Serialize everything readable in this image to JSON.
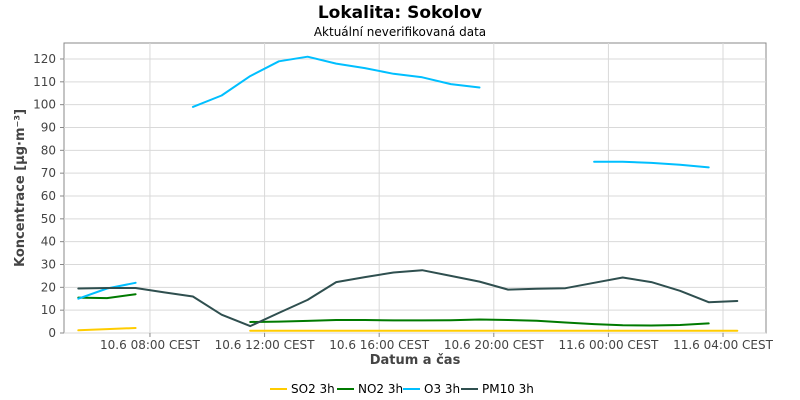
{
  "chart_data": {
    "type": "line",
    "title": "Lokalita: Sokolov",
    "subtitle": "Aktuální neverifikovaná data",
    "xlabel": "Datum a čas",
    "ylabel": "Koncentrace [µg·m⁻³]",
    "ylim": [
      0,
      127
    ],
    "yticks": [
      0,
      10,
      20,
      30,
      40,
      50,
      60,
      70,
      80,
      90,
      100,
      110,
      120
    ],
    "xlim": [
      "10.6 05:00",
      "11.6 05:30"
    ],
    "xticks": [
      {
        "time": "10.6 08:00",
        "label": "10.6 08:00 CEST"
      },
      {
        "time": "10.6 12:00",
        "label": "10.6 12:00 CEST"
      },
      {
        "time": "10.6 16:00",
        "label": "10.6 16:00 CEST"
      },
      {
        "time": "10.6 20:00",
        "label": "10.6 20:00 CEST"
      },
      {
        "time": "11.6 00:00",
        "label": "11.6 00:00 CEST"
      },
      {
        "time": "11.6 04:00",
        "label": "11.6 04:00 CEST"
      }
    ],
    "grid": true,
    "legend_position": "bottom",
    "series": [
      {
        "name": "SO2 3h",
        "color": "#ffcc00",
        "points": [
          [
            "10.6 05:30",
            1.2
          ],
          [
            "10.6 06:30",
            1.7
          ],
          [
            "10.6 07:30",
            2.2
          ],
          null,
          [
            "10.6 11:30",
            1.0
          ],
          [
            "10.6 12:30",
            1.0
          ],
          [
            "10.6 13:30",
            1.0
          ],
          [
            "10.6 14:30",
            1.0
          ],
          [
            "10.6 15:30",
            1.0
          ],
          [
            "10.6 16:30",
            1.0
          ],
          [
            "10.6 17:30",
            1.0
          ],
          [
            "10.6 18:30",
            1.0
          ],
          [
            "10.6 19:30",
            1.0
          ],
          [
            "10.6 20:30",
            1.0
          ],
          [
            "10.6 21:30",
            1.0
          ],
          [
            "10.6 22:30",
            1.0
          ],
          [
            "10.6 23:30",
            1.0
          ],
          [
            "11.6 00:30",
            1.0
          ],
          [
            "11.6 01:30",
            1.0
          ],
          [
            "11.6 02:30",
            1.0
          ],
          [
            "11.6 03:30",
            1.0
          ],
          [
            "11.6 04:30",
            1.0
          ]
        ]
      },
      {
        "name": "NO2 3h",
        "color": "#007a00",
        "points": [
          [
            "10.6 05:30",
            15.5
          ],
          [
            "10.6 06:30",
            15.3
          ],
          [
            "10.6 07:30",
            17.0
          ],
          null,
          [
            "10.6 11:30",
            4.8
          ],
          [
            "10.6 12:30",
            5.0
          ],
          [
            "10.6 13:30",
            5.3
          ],
          [
            "10.6 14:30",
            5.7
          ],
          [
            "10.6 15:30",
            5.7
          ],
          [
            "10.6 16:30",
            5.5
          ],
          [
            "10.6 17:30",
            5.5
          ],
          [
            "10.6 18:30",
            5.6
          ],
          [
            "10.6 19:30",
            5.9
          ],
          [
            "10.6 20:30",
            5.7
          ],
          [
            "10.6 21:30",
            5.4
          ],
          [
            "10.6 22:30",
            4.6
          ],
          [
            "10.6 23:30",
            3.9
          ],
          [
            "11.6 00:30",
            3.4
          ],
          [
            "11.6 01:30",
            3.3
          ],
          [
            "11.6 02:30",
            3.5
          ],
          [
            "11.6 03:30",
            4.2
          ]
        ]
      },
      {
        "name": "O3 3h",
        "color": "#00bfff",
        "points": [
          [
            "10.6 05:30",
            15.0
          ],
          [
            "10.6 06:30",
            19.5
          ],
          [
            "10.6 07:30",
            22.0
          ],
          null,
          [
            "10.6 09:30",
            99.0
          ],
          [
            "10.6 10:30",
            104.0
          ],
          [
            "10.6 11:30",
            112.5
          ],
          [
            "10.6 12:30",
            119.0
          ],
          [
            "10.6 13:30",
            121.0
          ],
          [
            "10.6 14:30",
            118.0
          ],
          [
            "10.6 15:30",
            116.0
          ],
          [
            "10.6 16:30",
            113.5
          ],
          [
            "10.6 17:30",
            112.0
          ],
          [
            "10.6 18:30",
            109.0
          ],
          [
            "10.6 19:30",
            107.5
          ],
          null,
          [
            "10.6 23:30",
            75.0
          ],
          [
            "11.6 00:30",
            75.0
          ],
          [
            "11.6 01:30",
            74.5
          ],
          [
            "11.6 02:30",
            73.7
          ],
          [
            "11.6 03:30",
            72.5
          ]
        ]
      },
      {
        "name": "PM10 3h",
        "color": "#2f4f4f",
        "points": [
          [
            "10.6 05:30",
            19.5
          ],
          [
            "10.6 06:30",
            19.7
          ],
          [
            "10.6 07:30",
            19.7
          ],
          [
            "10.6 08:30",
            17.8
          ],
          [
            "10.6 09:30",
            16.0
          ],
          [
            "10.6 10:30",
            8.0
          ],
          [
            "10.6 11:30",
            3.0
          ],
          [
            "10.6 12:30",
            8.8
          ],
          [
            "10.6 13:30",
            14.5
          ],
          [
            "10.6 14:30",
            22.3
          ],
          [
            "10.6 15:30",
            24.5
          ],
          [
            "10.6 16:30",
            26.5
          ],
          [
            "10.6 17:30",
            27.5
          ],
          [
            "10.6 18:30",
            25.0
          ],
          [
            "10.6 19:30",
            22.5
          ],
          [
            "10.6 20:30",
            19.0
          ],
          [
            "10.6 21:30",
            19.4
          ],
          [
            "10.6 22:30",
            19.6
          ],
          [
            "10.6 23:30",
            22.0
          ],
          [
            "11.6 00:30",
            24.3
          ],
          [
            "11.6 01:30",
            22.3
          ],
          [
            "11.6 02:30",
            18.5
          ],
          [
            "11.6 03:30",
            13.5
          ],
          [
            "11.6 04:30",
            14.0
          ]
        ]
      }
    ]
  }
}
